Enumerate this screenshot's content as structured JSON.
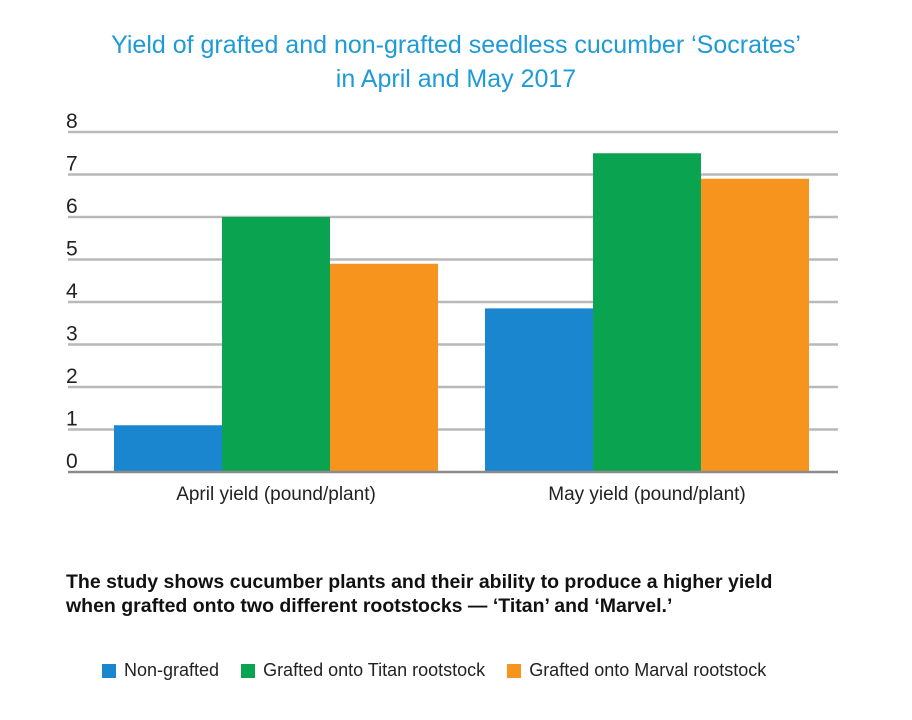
{
  "chart_data": {
    "type": "bar",
    "title": "Yield of grafted and non-grafted seedless cucumber ‘Socrates’ in April and May 2017",
    "title_lines": [
      "Yield of grafted and non-grafted seedless cucumber ‘Socrates’",
      "in April and May 2017"
    ],
    "categories": [
      "April yield (pound/plant)",
      "May yield (pound/plant)"
    ],
    "series": [
      {
        "name": "Non-grafted",
        "color": "#1a86d0",
        "values": [
          1.1,
          3.85
        ]
      },
      {
        "name": "Grafted onto Titan rootstock",
        "color": "#0aa451",
        "values": [
          6.0,
          7.5
        ]
      },
      {
        "name": "Grafted onto Marval rootstock",
        "color": "#f7941d",
        "values": [
          4.9,
          6.9
        ]
      }
    ],
    "yticks": [
      "0",
      "1",
      "2",
      "3",
      "4",
      "5",
      "6",
      "7",
      "8"
    ],
    "ylim": [
      0,
      8
    ],
    "xlabel": "",
    "ylabel": "",
    "grid": true,
    "legend": "bottom"
  },
  "caption": {
    "line1": "The study shows cucumber plants and their ability to produce a higher yield",
    "line2": "when grafted onto two different rootstocks — ‘Titan’ and ‘Marvel.’"
  }
}
